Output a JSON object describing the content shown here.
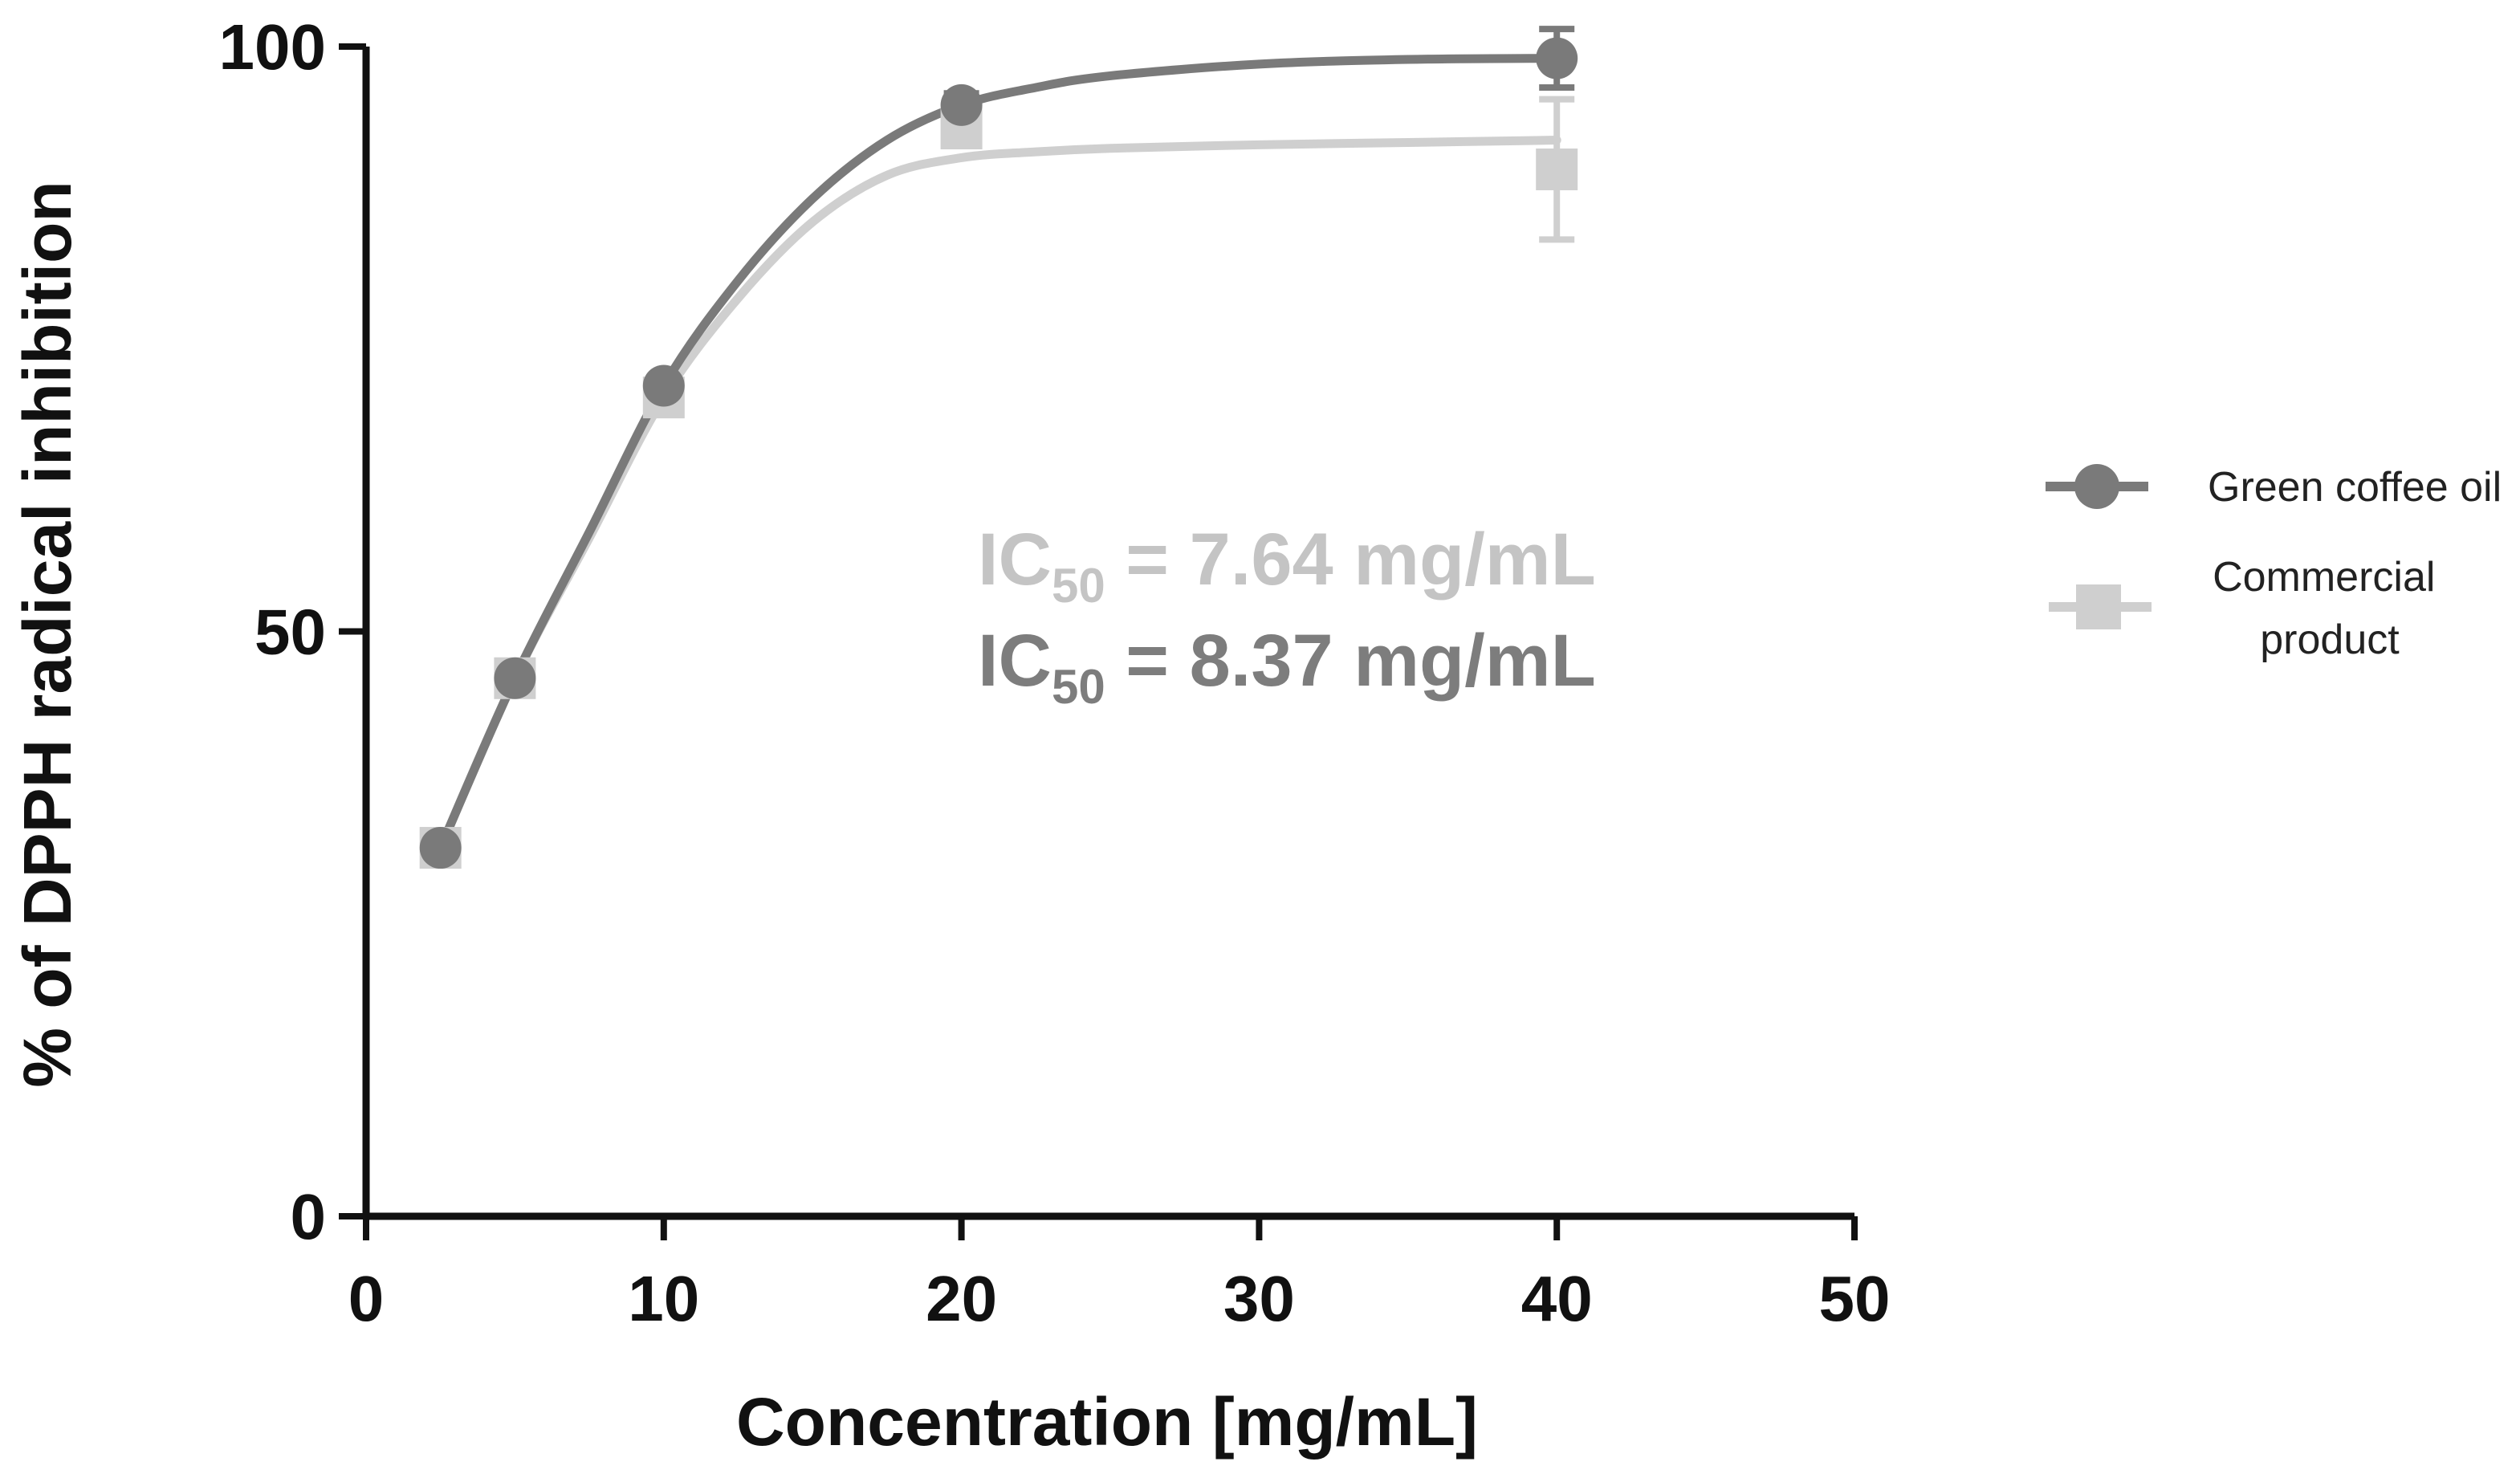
{
  "chart_data": {
    "type": "line",
    "xlabel": "Concentration [mg/mL]",
    "ylabel": "% of DPPH radical inhibition",
    "xlim": [
      0,
      50
    ],
    "ylim": [
      0,
      100
    ],
    "x_ticks": [
      "0",
      "10",
      "20",
      "30",
      "40",
      "50"
    ],
    "y_ticks": [
      "0",
      "50",
      "100"
    ],
    "x_tick_values": [
      0,
      10,
      20,
      30,
      40,
      50
    ],
    "y_tick_values": [
      0,
      50,
      100
    ],
    "grid": false,
    "legend_position": "right",
    "series": [
      {
        "name": "Green coffee oil",
        "color": "#7a7a7a",
        "marker": "circle",
        "x": [
          2.5,
          5,
          10,
          20,
          40
        ],
        "y": [
          31.5,
          46,
          71,
          95,
          99
        ],
        "error": [
          0.5,
          0.5,
          0.5,
          1,
          2.5
        ],
        "curve_x": [
          2.5,
          5,
          7.5,
          10,
          12.5,
          15,
          17.5,
          20,
          22.5,
          25,
          30,
          35,
          40
        ],
        "curve_y": [
          31.5,
          46,
          58.5,
          71,
          80,
          87,
          92,
          95,
          96.5,
          97.5,
          98.5,
          98.9,
          99
        ]
      },
      {
        "name": "Commercial product",
        "color": "#cfcfcf",
        "marker": "square",
        "x": [
          2.5,
          5,
          10,
          20,
          40
        ],
        "y": [
          31.5,
          46,
          70,
          93,
          89.5
        ],
        "error": [
          0.5,
          0.5,
          0.5,
          1.5,
          6
        ],
        "curve_x": [
          2.5,
          5,
          7.5,
          10,
          12.5,
          15,
          17.5,
          20,
          22.5,
          25,
          30,
          35,
          40
        ],
        "curve_y": [
          31.5,
          46,
          58,
          70,
          78.5,
          85,
          89,
          90.5,
          91,
          91.3,
          91.6,
          91.8,
          92
        ]
      }
    ],
    "annotations": [
      {
        "prefix": "IC",
        "sub": "50",
        "text": " = 7.64 mg/mL",
        "color": "#c4c4c4"
      },
      {
        "prefix": "IC",
        "sub": "50",
        "text": " = 8.37 mg/mL",
        "color": "#7d7d7d"
      }
    ]
  }
}
